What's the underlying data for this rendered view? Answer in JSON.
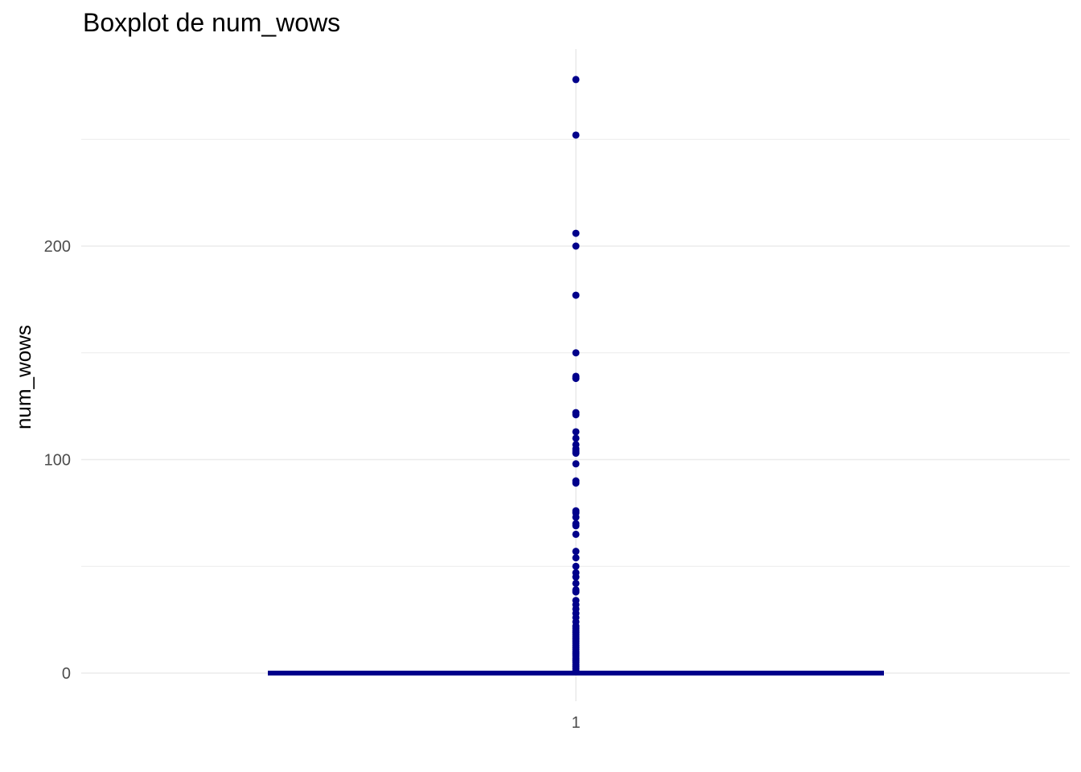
{
  "chart_data": {
    "type": "boxplot",
    "title": "Boxplot de num_wows",
    "xlabel": "",
    "ylabel": "num_wows",
    "categories": [
      "1"
    ],
    "ylim": [
      -12,
      290
    ],
    "y_ticks": [
      0,
      100,
      200
    ],
    "y_tick_labels": [
      "0",
      "100",
      "200"
    ],
    "minor_y_gridlines": [
      50,
      150,
      250
    ],
    "grid": true,
    "legend": "none",
    "box": {
      "category": "1",
      "min": 0,
      "q1": 0,
      "median": 0,
      "q3": 0,
      "max": 0
    },
    "outliers": [
      1,
      2,
      3,
      4,
      5,
      6,
      7,
      8,
      9,
      10,
      11,
      12,
      13,
      14,
      15,
      16,
      17,
      18,
      19,
      20,
      21,
      22,
      24,
      26,
      28,
      30,
      32,
      34,
      38,
      39,
      42,
      45,
      47,
      50,
      54,
      57,
      65,
      69,
      70,
      73,
      75,
      76,
      89,
      90,
      98,
      103,
      104,
      105,
      107,
      110,
      113,
      121,
      122,
      138,
      139,
      150,
      177,
      200,
      206,
      252,
      278
    ],
    "colors": {
      "box": "#00008b",
      "points": "#00008b",
      "grid": "#ebebeb",
      "background": "#ffffff"
    }
  }
}
